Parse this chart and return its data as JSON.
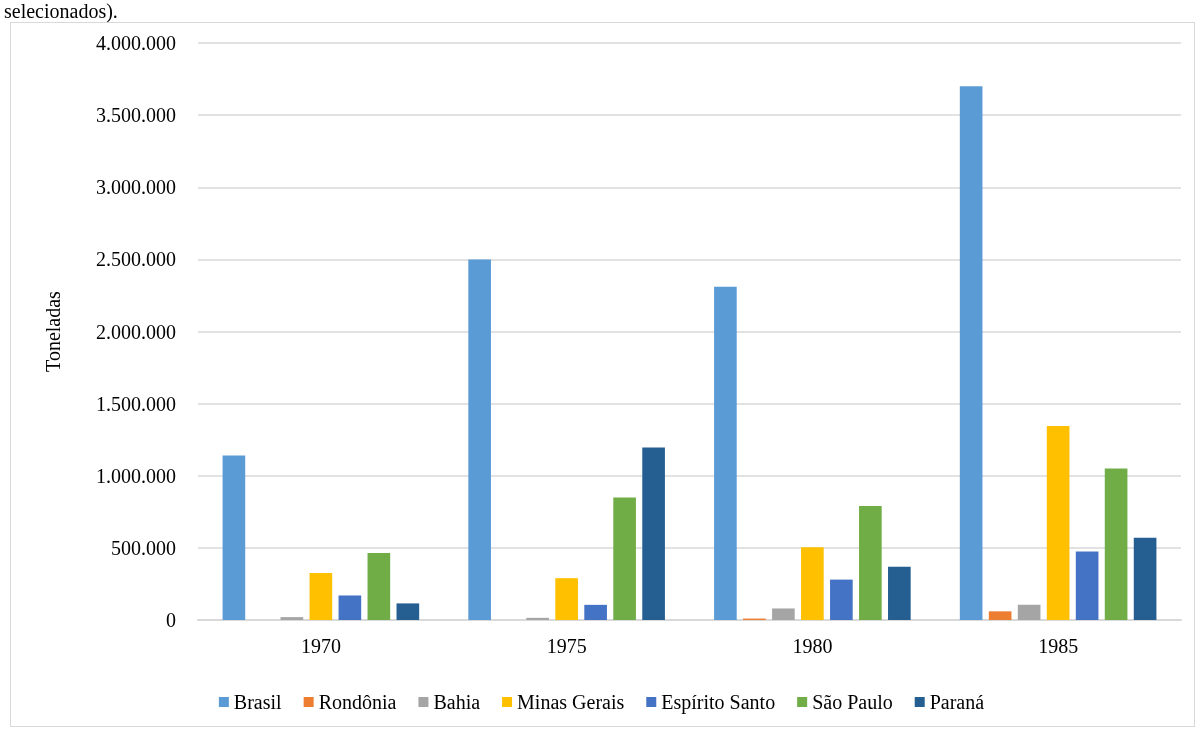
{
  "chart_data": {
    "type": "bar",
    "ylabel": "Toneladas",
    "annotations": [
      "selecionados)."
    ],
    "categories": [
      "1970",
      "1975",
      "1980",
      "1985"
    ],
    "series": [
      {
        "name": "Brasil",
        "color": "#5b9bd5",
        "values": [
          1140000,
          2500000,
          2310000,
          3700000
        ]
      },
      {
        "name": "Rondônia",
        "color": "#ed7d31",
        "values": [
          null,
          null,
          10000,
          60000
        ]
      },
      {
        "name": "Bahia",
        "color": "#a5a5a5",
        "values": [
          20000,
          15000,
          80000,
          105000
        ]
      },
      {
        "name": "Minas Gerais",
        "color": "#ffc000",
        "values": [
          325000,
          290000,
          505000,
          1345000
        ]
      },
      {
        "name": "Espírito Santo",
        "color": "#4472c4",
        "values": [
          170000,
          105000,
          280000,
          475000
        ]
      },
      {
        "name": "São Paulo",
        "color": "#70ad47",
        "values": [
          465000,
          850000,
          790000,
          1050000
        ]
      },
      {
        "name": "Paraná",
        "color": "#255e91",
        "values": [
          115000,
          1195000,
          370000,
          570000
        ]
      }
    ],
    "ylim": [
      0,
      4000000
    ],
    "yticks": [
      {
        "value": 0,
        "label": "0"
      },
      {
        "value": 500000,
        "label": "500.000"
      },
      {
        "value": 1000000,
        "label": "1.000.000"
      },
      {
        "value": 1500000,
        "label": "1.500.000"
      },
      {
        "value": 2000000,
        "label": "2.000.000"
      },
      {
        "value": 2500000,
        "label": "2.500.000"
      },
      {
        "value": 3000000,
        "label": "3.000.000"
      },
      {
        "value": 3500000,
        "label": "3.500.000"
      },
      {
        "value": 4000000,
        "label": "4.000.000"
      }
    ],
    "grid": "y",
    "legend": "bottom"
  }
}
